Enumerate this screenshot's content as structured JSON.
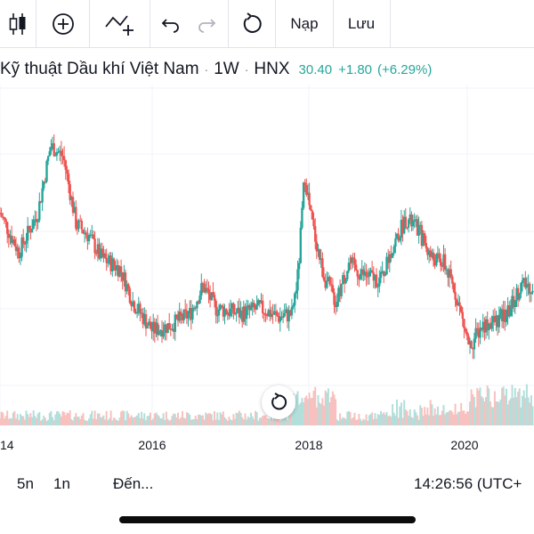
{
  "toolbar": {
    "load_label": "Nạp",
    "save_label": "Lưu"
  },
  "legend": {
    "symbol_name": "Kỹ thuật Dầu khí Việt Nam",
    "interval": "1W",
    "exchange": "HNX",
    "last_price": "30.40",
    "change": "+1.80",
    "change_pct": "(+6.29%)"
  },
  "colors": {
    "up": "#26a69a",
    "down": "#ef5350",
    "up_volume": "#b2dfdb",
    "down_volume": "#f8c1bf"
  },
  "chart_data": {
    "type": "candlestick",
    "x_ticks": [
      "14",
      "2016",
      "2018",
      "2020"
    ],
    "price_anchors": [
      [
        "2014-01",
        25.5
      ],
      [
        "2014-04",
        22.0
      ],
      [
        "2014-07",
        25.5
      ],
      [
        "2014-09",
        31.5
      ],
      [
        "2014-11",
        30.5
      ],
      [
        "2015-01",
        24.5
      ],
      [
        "2015-03",
        23.5
      ],
      [
        "2015-05",
        21.5
      ],
      [
        "2015-08",
        20.5
      ],
      [
        "2015-10",
        17.5
      ],
      [
        "2016-01",
        15.0
      ],
      [
        "2016-04",
        15.5
      ],
      [
        "2016-07",
        16.5
      ],
      [
        "2016-09",
        19.0
      ],
      [
        "2016-11",
        17.0
      ],
      [
        "2017-03",
        16.5
      ],
      [
        "2017-06",
        17.0
      ],
      [
        "2017-09",
        16.2
      ],
      [
        "2017-11",
        16.5
      ],
      [
        "2017-12",
        20.0
      ],
      [
        "2018-01",
        29.0
      ],
      [
        "2018-02",
        25.0
      ],
      [
        "2018-04",
        20.0
      ],
      [
        "2018-06",
        17.5
      ],
      [
        "2018-08",
        21.0
      ],
      [
        "2018-10",
        20.0
      ],
      [
        "2019-01",
        19.5
      ],
      [
        "2019-03",
        22.5
      ],
      [
        "2019-05",
        25.0
      ],
      [
        "2019-07",
        24.0
      ],
      [
        "2019-09",
        21.5
      ],
      [
        "2019-11",
        21.0
      ],
      [
        "2020-01",
        18.0
      ],
      [
        "2020-03",
        13.5
      ],
      [
        "2020-05",
        15.5
      ],
      [
        "2020-07",
        15.8
      ],
      [
        "2020-09",
        16.5
      ],
      [
        "2020-11",
        19.0
      ]
    ]
  },
  "bottom": {
    "range_5y": "5n",
    "range_1y": "1n",
    "goto": "Đến...",
    "clock": "14:26:56 (UTC+"
  }
}
